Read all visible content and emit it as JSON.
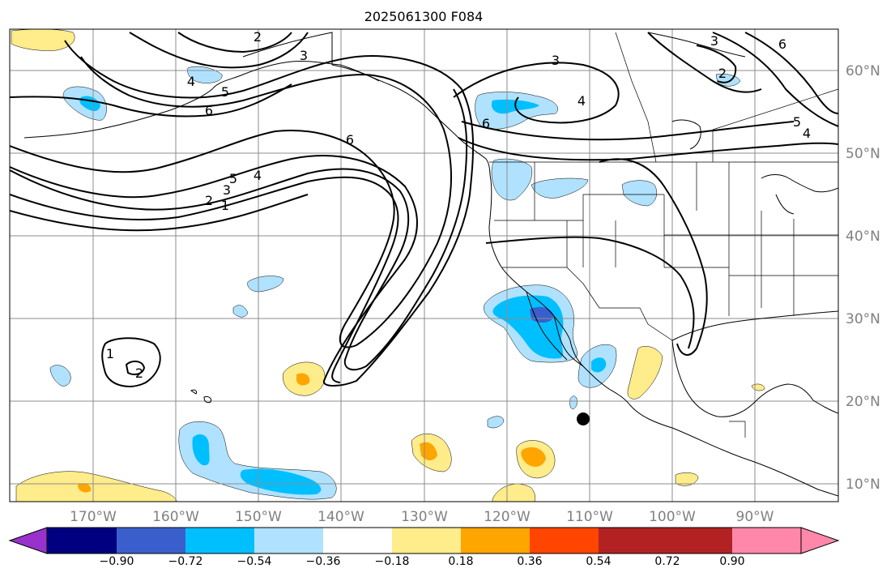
{
  "title": "2025061300 F084",
  "lon_ticks": [
    "170°W",
    "160°W",
    "150°W",
    "140°W",
    "130°W",
    "120°W",
    "110°W",
    "100°W",
    "90°W"
  ],
  "lat_ticks": [
    "60°N",
    "50°N",
    "40°N",
    "30°N",
    "20°N",
    "10°N"
  ],
  "colorbar": {
    "colors": [
      "#9932cc",
      "#000080",
      "#3a5fcd",
      "#00bfff",
      "#b0e2ff",
      "#ffffff",
      "#ffec8b",
      "#ffa500",
      "#ff4500",
      "#b22222",
      "#ff88aa"
    ],
    "labels": [
      "−0.90",
      "−0.72",
      "−0.54",
      "−0.36",
      "−0.18",
      "0.18",
      "0.36",
      "0.54",
      "0.72",
      "0.90"
    ]
  },
  "contour_labels": [
    "2",
    "3",
    "4",
    "5",
    "6",
    "1",
    "2",
    "3",
    "4",
    "5",
    "6",
    "6",
    "3",
    "4",
    "2",
    "3",
    "6",
    "5",
    "4",
    "1",
    "2"
  ],
  "marker": "filled-circle"
}
